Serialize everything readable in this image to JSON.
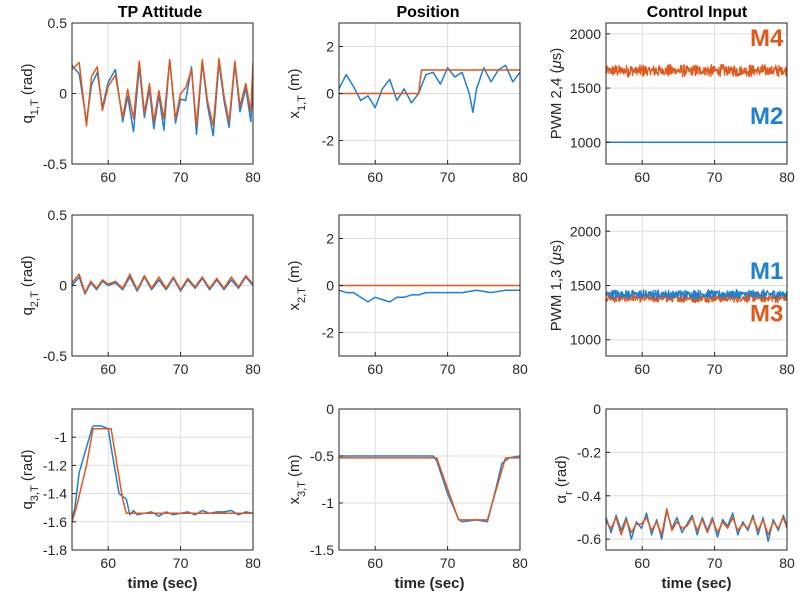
{
  "colors": {
    "blue": "#1f7fd1",
    "orange": "#e2571c",
    "axis": "#262626",
    "grid": "#dedede"
  },
  "column_titles": [
    "TP Attitude",
    "Position",
    "Control Input"
  ],
  "xlabel": "time (sec)",
  "chart_data": [
    {
      "type": "line",
      "title": "TP Attitude",
      "ylabel": "q_{1,T} (rad)",
      "ylabel_main": "q",
      "ylabel_sub": "1,T",
      "ylabel_unit": " (rad)",
      "xlim": [
        55,
        80
      ],
      "ylim": [
        -0.5,
        0.5
      ],
      "xticks": [
        60,
        70,
        80
      ],
      "yticks": [
        -0.5,
        0,
        0.5
      ],
      "xtick_labels": [
        "60",
        "70",
        "80"
      ],
      "ytick_labels": [
        "-0.5",
        "0",
        "0.5"
      ],
      "show_xlabel": false,
      "grid": true,
      "series": [
        {
          "color": "blue",
          "x": [
            55,
            56,
            57,
            57.7,
            58.5,
            59.2,
            60,
            61,
            62,
            62.7,
            63.5,
            64.3,
            65,
            65.7,
            66.3,
            67,
            67.7,
            68.5,
            69.3,
            70,
            70.7,
            71.5,
            72.2,
            73,
            73.7,
            74.5,
            75.3,
            76,
            76.7,
            77.5,
            78.2,
            79,
            79.7,
            80
          ],
          "y": [
            0.2,
            0.14,
            -0.2,
            0.06,
            0.15,
            -0.1,
            0.08,
            0.17,
            -0.2,
            -0.02,
            -0.27,
            0.19,
            -0.17,
            0.03,
            -0.25,
            -0.01,
            -0.26,
            0.24,
            -0.21,
            -0.04,
            -0.05,
            0.19,
            -0.29,
            0.22,
            -0.08,
            -0.3,
            0.22,
            -0.05,
            -0.24,
            0.21,
            -0.13,
            0.04,
            -0.2,
            0.08
          ]
        },
        {
          "color": "orange",
          "x": [
            55,
            56,
            57,
            57.7,
            58.5,
            59.2,
            60,
            61,
            62,
            62.7,
            63.5,
            64.3,
            65,
            65.7,
            66.3,
            67,
            67.7,
            68.5,
            69.3,
            70,
            70.7,
            71.5,
            72.2,
            73,
            73.7,
            74.5,
            75.3,
            76,
            76.7,
            77.5,
            78.2,
            79,
            79.7,
            80
          ],
          "y": [
            0.17,
            0.22,
            -0.23,
            0.12,
            0.19,
            -0.12,
            0.05,
            0.13,
            -0.17,
            0.03,
            -0.18,
            0.23,
            -0.14,
            0.07,
            -0.2,
            0.02,
            -0.18,
            0.24,
            -0.18,
            0.0,
            0.04,
            0.17,
            -0.23,
            0.24,
            -0.05,
            -0.23,
            0.25,
            -0.02,
            -0.2,
            0.23,
            -0.09,
            0.07,
            -0.13,
            0.22
          ]
        }
      ]
    },
    {
      "type": "line",
      "title": "Position",
      "ylabel": "x_{1,T} (m)",
      "ylabel_main": "x",
      "ylabel_sub": "1,T",
      "ylabel_unit": " (m)",
      "xlim": [
        55,
        80
      ],
      "ylim": [
        -3,
        3
      ],
      "xticks": [
        60,
        70,
        80
      ],
      "yticks": [
        -2,
        0,
        2
      ],
      "xtick_labels": [
        "60",
        "70",
        "80"
      ],
      "ytick_labels": [
        "-2",
        "0",
        "2"
      ],
      "show_xlabel": false,
      "grid": true,
      "series": [
        {
          "color": "blue",
          "x": [
            55,
            56,
            57,
            58,
            59,
            60,
            61,
            62,
            63,
            64,
            65,
            66,
            67,
            68,
            69,
            70,
            71,
            72,
            73,
            73.5,
            74,
            75,
            76,
            77,
            78,
            79,
            80
          ],
          "y": [
            0.2,
            0.8,
            0.3,
            -0.3,
            -0.1,
            -0.6,
            0.2,
            0.6,
            -0.3,
            0.2,
            -0.4,
            0.0,
            0.8,
            0.9,
            0.4,
            1.1,
            0.7,
            0.9,
            0.0,
            -0.8,
            0.2,
            1.1,
            0.5,
            1.0,
            1.2,
            0.5,
            0.9
          ]
        },
        {
          "color": "orange",
          "x": [
            55,
            66,
            66.4,
            74.5,
            74.9,
            80
          ],
          "y": [
            0,
            0,
            1,
            1,
            1,
            1
          ]
        }
      ]
    },
    {
      "type": "line",
      "title": "Control Input",
      "ylabel": "PWM 2,4 (μs)",
      "ylabel_main": "PWM 2,4 (",
      "ylabel_mu": "μ",
      "ylabel_s": "s)",
      "xlim": [
        55,
        80
      ],
      "ylim": [
        800,
        2100
      ],
      "xticks": [
        60,
        70,
        80
      ],
      "yticks": [
        1000,
        1500,
        2000
      ],
      "xtick_labels": [
        "60",
        "70",
        "80"
      ],
      "ytick_labels": [
        "1000",
        "1500",
        "2000"
      ],
      "show_xlabel": false,
      "grid": true,
      "series": [
        {
          "name": "M4",
          "color": "orange",
          "base": 1660,
          "amp": 60,
          "noise_band": true
        },
        {
          "name": "M2",
          "color": "blue",
          "x": [
            55,
            80
          ],
          "y": [
            1000,
            1000
          ]
        }
      ],
      "annotations": [
        {
          "text": "M4",
          "color": "orange",
          "x": 79.5,
          "y": 1890
        },
        {
          "text": "M2",
          "color": "blue",
          "x": 79.5,
          "y": 1170
        }
      ]
    },
    {
      "type": "line",
      "ylabel": "q_{2,T} (rad)",
      "ylabel_main": "q",
      "ylabel_sub": "2,T",
      "ylabel_unit": " (rad)",
      "xlim": [
        55,
        80
      ],
      "ylim": [
        -0.5,
        0.5
      ],
      "xticks": [
        60,
        70,
        80
      ],
      "yticks": [
        -0.5,
        0,
        0.5
      ],
      "xtick_labels": [
        "60",
        "70",
        "80"
      ],
      "ytick_labels": [
        "-0.5",
        "0",
        "0.5"
      ],
      "show_xlabel": false,
      "grid": true,
      "series": [
        {
          "color": "blue",
          "x": [
            55,
            56,
            56.8,
            57.6,
            58.4,
            59.2,
            60,
            61,
            62,
            63,
            64,
            65,
            66,
            67,
            68,
            69,
            70,
            71,
            72,
            73,
            74,
            75,
            76,
            77,
            78,
            79,
            80
          ],
          "y": [
            0.0,
            0.06,
            -0.06,
            0.02,
            -0.03,
            0.03,
            0.0,
            0.02,
            -0.03,
            0.06,
            -0.04,
            0.06,
            -0.03,
            0.04,
            -0.03,
            0.05,
            -0.04,
            0.04,
            -0.02,
            0.05,
            -0.03,
            0.04,
            -0.03,
            0.04,
            -0.02,
            0.06,
            0.0
          ]
        },
        {
          "color": "orange",
          "x": [
            55,
            56,
            56.8,
            57.6,
            58.4,
            59.2,
            60,
            61,
            62,
            63,
            64,
            65,
            66,
            67,
            68,
            69,
            70,
            71,
            72,
            73,
            74,
            75,
            76,
            77,
            78,
            79,
            80
          ],
          "y": [
            0.02,
            0.08,
            -0.05,
            0.03,
            -0.02,
            0.04,
            0.01,
            0.03,
            -0.02,
            0.08,
            -0.03,
            0.07,
            -0.02,
            0.06,
            -0.02,
            0.06,
            -0.03,
            0.05,
            -0.01,
            0.06,
            -0.02,
            0.05,
            -0.02,
            0.06,
            -0.01,
            0.07,
            0.01
          ]
        }
      ]
    },
    {
      "type": "line",
      "ylabel": "x_{2,T} (m)",
      "ylabel_main": "x",
      "ylabel_sub": "2,T",
      "ylabel_unit": " (m)",
      "xlim": [
        55,
        80
      ],
      "ylim": [
        -3,
        3
      ],
      "xticks": [
        60,
        70,
        80
      ],
      "yticks": [
        -2,
        0,
        2
      ],
      "xtick_labels": [
        "60",
        "70",
        "80"
      ],
      "ytick_labels": [
        "-2",
        "0",
        "2"
      ],
      "show_xlabel": false,
      "grid": true,
      "series": [
        {
          "color": "blue",
          "x": [
            55,
            56,
            57,
            58,
            59,
            60,
            61,
            62,
            63,
            64,
            65,
            66,
            67,
            68,
            70,
            72,
            74,
            76,
            78,
            80
          ],
          "y": [
            -0.2,
            -0.3,
            -0.3,
            -0.5,
            -0.7,
            -0.5,
            -0.6,
            -0.7,
            -0.5,
            -0.5,
            -0.4,
            -0.4,
            -0.3,
            -0.3,
            -0.3,
            -0.3,
            -0.2,
            -0.3,
            -0.2,
            -0.2
          ]
        },
        {
          "color": "orange",
          "x": [
            55,
            80
          ],
          "y": [
            0,
            0
          ]
        }
      ]
    },
    {
      "type": "line",
      "ylabel": "PWM 1,3 (μs)",
      "ylabel_main": "PWM 1,3 (",
      "ylabel_mu": "μ",
      "ylabel_s": "s)",
      "xlim": [
        55,
        80
      ],
      "ylim": [
        850,
        2150
      ],
      "xticks": [
        60,
        70,
        80
      ],
      "yticks": [
        1000,
        1500,
        2000
      ],
      "xtick_labels": [
        "60",
        "70",
        "80"
      ],
      "ytick_labels": [
        "1000",
        "1500",
        "2000"
      ],
      "show_xlabel": false,
      "grid": true,
      "series": [
        {
          "name": "M3",
          "color": "orange",
          "base": 1385,
          "amp": 45,
          "noise_band": true
        },
        {
          "name": "M1",
          "color": "blue",
          "base": 1420,
          "amp": 45,
          "noise_band": true
        }
      ],
      "annotations": [
        {
          "text": "M1",
          "color": "blue",
          "x": 79.5,
          "y": 1560
        },
        {
          "text": "M3",
          "color": "orange",
          "x": 79.5,
          "y": 1170
        }
      ]
    },
    {
      "type": "line",
      "ylabel": "q_{3,T} (rad)",
      "ylabel_main": "q",
      "ylabel_sub": "3,T",
      "ylabel_unit": " (rad)",
      "xlim": [
        55,
        80
      ],
      "ylim": [
        -1.8,
        -0.8
      ],
      "xticks": [
        60,
        70,
        80
      ],
      "yticks": [
        -1.8,
        -1.6,
        -1.4,
        -1.2,
        -1
      ],
      "xtick_labels": [
        "60",
        "70",
        "80"
      ],
      "ytick_labels": [
        "-1.8",
        "-1.6",
        "-1.4",
        "-1.2",
        "-1"
      ],
      "show_xlabel": true,
      "grid": true,
      "series": [
        {
          "color": "blue",
          "x": [
            55,
            55.4,
            56,
            57.8,
            58,
            59,
            60,
            60.5,
            61.5,
            62,
            62.5,
            63,
            63.5,
            64,
            65,
            66,
            67,
            68,
            69,
            70,
            71,
            72,
            73,
            74,
            75,
            76,
            77,
            78,
            79,
            80
          ],
          "y": [
            -1.58,
            -1.5,
            -1.25,
            -0.93,
            -0.92,
            -0.92,
            -0.94,
            -1.1,
            -1.4,
            -1.42,
            -1.44,
            -1.55,
            -1.52,
            -1.55,
            -1.54,
            -1.53,
            -1.56,
            -1.53,
            -1.55,
            -1.54,
            -1.53,
            -1.55,
            -1.52,
            -1.54,
            -1.53,
            -1.53,
            -1.52,
            -1.55,
            -1.53,
            -1.54
          ]
        },
        {
          "color": "orange",
          "x": [
            55,
            55.6,
            57,
            57.9,
            60.4,
            62,
            62.5,
            80
          ],
          "y": [
            -1.6,
            -1.5,
            -1.2,
            -0.94,
            -0.94,
            -1.44,
            -1.54,
            -1.54
          ]
        }
      ]
    },
    {
      "type": "line",
      "ylabel": "x_{3,T} (m)",
      "ylabel_main": "x",
      "ylabel_sub": "3,T",
      "ylabel_unit": " (m)",
      "xlim": [
        55,
        80
      ],
      "ylim": [
        -1.5,
        0
      ],
      "xticks": [
        60,
        70,
        80
      ],
      "yticks": [
        -1.5,
        -1,
        -0.5,
        0
      ],
      "xtick_labels": [
        "60",
        "70",
        "80"
      ],
      "ytick_labels": [
        "-1.5",
        "-1",
        "-0.5",
        "0"
      ],
      "show_xlabel": true,
      "grid": true,
      "series": [
        {
          "color": "blue",
          "x": [
            55,
            60,
            65,
            68,
            68.5,
            70,
            71.5,
            72,
            74,
            75.5,
            76.5,
            77.5,
            78.5,
            80
          ],
          "y": [
            -0.5,
            -0.5,
            -0.5,
            -0.5,
            -0.55,
            -0.9,
            -1.17,
            -1.2,
            -1.18,
            -1.2,
            -0.9,
            -0.58,
            -0.52,
            -0.5
          ]
        },
        {
          "color": "orange",
          "x": [
            55,
            68.5,
            71.5,
            75.5,
            78,
            80
          ],
          "y": [
            -0.52,
            -0.52,
            -1.18,
            -1.18,
            -0.52,
            -0.52
          ]
        }
      ]
    },
    {
      "type": "line",
      "ylabel": "α_r (rad)",
      "ylabel_main": "α",
      "ylabel_sub": "r",
      "ylabel_unit": " (rad)",
      "xlim": [
        55,
        80
      ],
      "ylim": [
        -0.65,
        0
      ],
      "xticks": [
        60,
        70,
        80
      ],
      "yticks": [
        -0.6,
        -0.4,
        -0.2,
        0
      ],
      "xtick_labels": [
        "60",
        "70",
        "80"
      ],
      "ytick_labels": [
        "-0.6",
        "-0.4",
        "-0.2",
        "0"
      ],
      "show_xlabel": true,
      "grid": true,
      "series": [
        {
          "color": "blue",
          "x": [
            55,
            55.7,
            56.4,
            57.1,
            57.8,
            58.5,
            59.2,
            59.9,
            60.6,
            61.3,
            62,
            62.7,
            63.4,
            64.1,
            64.8,
            65.5,
            66.2,
            66.9,
            67.6,
            68.3,
            69,
            69.7,
            70.4,
            71.1,
            71.8,
            72.5,
            73.2,
            73.9,
            74.6,
            75.3,
            76,
            76.7,
            77.4,
            78.1,
            78.8,
            79.5,
            80
          ],
          "y": [
            -0.5,
            -0.57,
            -0.49,
            -0.56,
            -0.5,
            -0.6,
            -0.52,
            -0.55,
            -0.48,
            -0.58,
            -0.51,
            -0.6,
            -0.47,
            -0.55,
            -0.5,
            -0.57,
            -0.53,
            -0.49,
            -0.58,
            -0.5,
            -0.56,
            -0.5,
            -0.59,
            -0.51,
            -0.54,
            -0.48,
            -0.58,
            -0.52,
            -0.56,
            -0.49,
            -0.58,
            -0.5,
            -0.61,
            -0.51,
            -0.56,
            -0.49,
            -0.54
          ]
        },
        {
          "color": "orange",
          "x": [
            55,
            55.7,
            56.4,
            57.1,
            57.8,
            58.5,
            59.2,
            59.9,
            60.6,
            61.3,
            62,
            62.7,
            63.4,
            64.1,
            64.8,
            65.5,
            66.2,
            66.9,
            67.6,
            68.3,
            69,
            69.7,
            70.4,
            71.1,
            71.8,
            72.5,
            73.2,
            73.9,
            74.6,
            75.3,
            76,
            76.7,
            77.4,
            78.1,
            78.8,
            79.5,
            80
          ],
          "y": [
            -0.52,
            -0.55,
            -0.5,
            -0.58,
            -0.51,
            -0.57,
            -0.53,
            -0.53,
            -0.5,
            -0.56,
            -0.52,
            -0.58,
            -0.46,
            -0.56,
            -0.52,
            -0.55,
            -0.54,
            -0.5,
            -0.56,
            -0.51,
            -0.57,
            -0.51,
            -0.57,
            -0.52,
            -0.55,
            -0.5,
            -0.56,
            -0.53,
            -0.55,
            -0.5,
            -0.56,
            -0.51,
            -0.58,
            -0.52,
            -0.55,
            -0.5,
            -0.55
          ]
        }
      ]
    }
  ]
}
